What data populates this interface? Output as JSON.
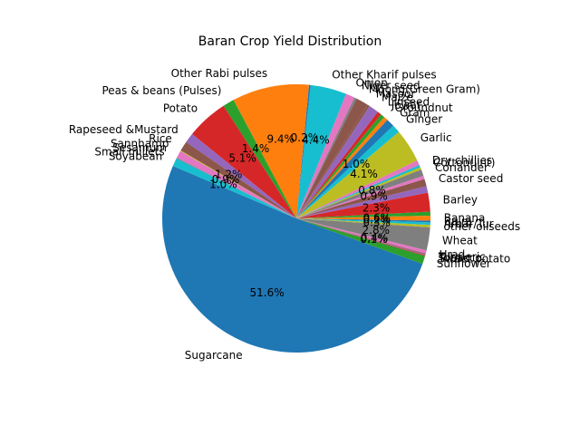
{
  "chart_data": {
    "type": "pie",
    "title": "Baran Crop Yield Distribution",
    "start_angle_deg": 157,
    "direction": "counterclockwise",
    "slices": [
      {
        "label": "Sugarcane",
        "value": 51.6,
        "pct_label": "51.6%",
        "color": "#1f77b4"
      },
      {
        "label": "Sunflower",
        "value": 1.0,
        "pct_label": "",
        "color": "#2ca02c"
      },
      {
        "label": "Sweet potato",
        "value": 0.1,
        "pct_label": "",
        "color": "#d62728"
      },
      {
        "label": "Tobacco",
        "value": 0.1,
        "pct_label": "",
        "color": "#9467bd"
      },
      {
        "label": "Turmeric",
        "value": 0.1,
        "pct_label": "0.1%",
        "color": "#8c564b"
      },
      {
        "label": "Urad",
        "value": 0.4,
        "pct_label": "0.4%",
        "color": "#e377c2"
      },
      {
        "label": "Wheat",
        "value": 2.8,
        "pct_label": "2.8%",
        "color": "#7f7f7f"
      },
      {
        "label": "other oilseeds",
        "value": 0.3,
        "pct_label": "0.3%",
        "color": "#bcbd22"
      },
      {
        "label": "Arhar/Tur",
        "value": 0.3,
        "pct_label": "",
        "color": "#17becf"
      },
      {
        "label": "Bajra",
        "value": 0.2,
        "pct_label": "0.2%",
        "color": "#1f77b4"
      },
      {
        "label": "Banana",
        "value": 0.6,
        "pct_label": "0.6%",
        "color": "#ff7f0e"
      },
      {
        "label": "",
        "value": 0.5,
        "pct_label": "",
        "color": "#2ca02c"
      },
      {
        "label": "Barley",
        "value": 2.3,
        "pct_label": "2.3%",
        "color": "#d62728"
      },
      {
        "label": "",
        "value": 0.8,
        "pct_label": "",
        "color": "#9467bd"
      },
      {
        "label": "Castor seed",
        "value": 0.9,
        "pct_label": "0.9%",
        "color": "#8c564b"
      },
      {
        "label": "",
        "value": 0.4,
        "pct_label": "",
        "color": "#e377c2"
      },
      {
        "label": "Coriander",
        "value": 0.8,
        "pct_label": "0.8%",
        "color": "#7f7f7f"
      },
      {
        "label": "Cotton(lint)",
        "value": 0.3,
        "pct_label": "",
        "color": "#bcbd22"
      },
      {
        "label": "Dry chillies",
        "value": 0.3,
        "pct_label": "",
        "color": "#17becf"
      },
      {
        "label": "",
        "value": 0.6,
        "pct_label": "",
        "color": "#e377c2"
      },
      {
        "label": "Garlic",
        "value": 4.1,
        "pct_label": "4.1%",
        "color": "#bcbd22"
      },
      {
        "label": "Ginger",
        "value": 1.0,
        "pct_label": "1.0%",
        "color": "#17becf"
      },
      {
        "label": "Gram",
        "value": 1.0,
        "pct_label": "",
        "color": "#1f77b4"
      },
      {
        "label": "Groundnut",
        "value": 0.5,
        "pct_label": "",
        "color": "#ff7f0e"
      },
      {
        "label": "Jowar",
        "value": 0.5,
        "pct_label": "",
        "color": "#2ca02c"
      },
      {
        "label": "Linseed",
        "value": 0.5,
        "pct_label": "",
        "color": "#d62728"
      },
      {
        "label": "Maize",
        "value": 1.2,
        "pct_label": "",
        "color": "#9467bd"
      },
      {
        "label": "Masoor",
        "value": 0.3,
        "pct_label": "",
        "color": "#8c564b"
      },
      {
        "label": "Moong(Green Gram)",
        "value": 1.5,
        "pct_label": "",
        "color": "#8c564b"
      },
      {
        "label": "Niger seed",
        "value": 0.3,
        "pct_label": "",
        "color": "#7f7f7f"
      },
      {
        "label": "Onion",
        "value": 1.1,
        "pct_label": "",
        "color": "#e377c2"
      },
      {
        "label": "Other Kharif pulses",
        "value": 4.4,
        "pct_label": "4.4%",
        "color": "#17becf"
      },
      {
        "label": "",
        "value": 0.2,
        "pct_label": "0.2%",
        "color": "#1f77b4"
      },
      {
        "label": "Other Rabi pulses",
        "value": 9.4,
        "pct_label": "9.4%",
        "color": "#ff7f0e"
      },
      {
        "label": "Peas & beans (Pulses)",
        "value": 1.4,
        "pct_label": "1.4%",
        "color": "#2ca02c"
      },
      {
        "label": "Potato",
        "value": 5.1,
        "pct_label": "5.1%",
        "color": "#d62728"
      },
      {
        "label": "Rapeseed &Mustard",
        "value": 1.2,
        "pct_label": "",
        "color": "#9467bd"
      },
      {
        "label": "Rice",
        "value": 1.2,
        "pct_label": "1.2%",
        "color": "#8c564b"
      },
      {
        "label": "Sannhamp",
        "value": 0.1,
        "pct_label": "",
        "color": "#bcbd22"
      },
      {
        "label": "Sesamum",
        "value": 0.9,
        "pct_label": "0.9%",
        "color": "#e377c2"
      },
      {
        "label": "Small millets",
        "value": 0.1,
        "pct_label": "",
        "color": "#7f7f7f"
      },
      {
        "label": "Soyabean",
        "value": 1.0,
        "pct_label": "1.0%",
        "color": "#17becf"
      }
    ]
  }
}
